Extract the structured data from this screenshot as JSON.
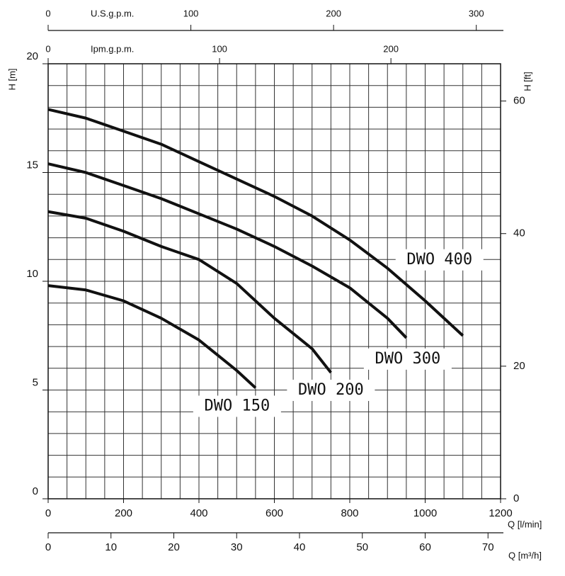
{
  "chart_data": {
    "type": "line",
    "x_label": "Q [l/min]",
    "y_label": "H [m]",
    "y2_label": "H [ft]",
    "xlim": [
      0,
      1200
    ],
    "xticks": [
      0,
      200,
      400,
      600,
      800,
      1000,
      1200
    ],
    "ylim": [
      0,
      20
    ],
    "yticks": [
      0,
      5,
      10,
      15,
      20
    ],
    "y2lim": [
      0,
      65.62
    ],
    "y2ticks": [
      0,
      20,
      40,
      60
    ],
    "grid": {
      "x_step": 50,
      "y_step": 1
    },
    "secondary_x_axes": [
      {
        "label": "Q [m³/h]",
        "lim": [
          0,
          72
        ],
        "ticks": [
          0,
          10,
          20,
          30,
          40,
          50,
          60,
          70
        ],
        "position": "bottom"
      },
      {
        "label": "U.S.g.p.m.",
        "lim": [
          0,
          317.01
        ],
        "ticks": [
          0,
          100,
          200,
          300
        ],
        "position": "top"
      },
      {
        "label": "Ipm.g.p.m.",
        "lim": [
          0,
          263.97
        ],
        "ticks": [
          0,
          100,
          200
        ],
        "position": "top"
      }
    ],
    "series": [
      {
        "name": "DWO 150",
        "color": "#111111",
        "x": [
          0,
          100,
          200,
          300,
          400,
          500,
          550
        ],
        "values": [
          9.8,
          9.6,
          9.1,
          8.3,
          7.3,
          5.9,
          5.1
        ]
      },
      {
        "name": "DWO 200",
        "color": "#111111",
        "x": [
          0,
          100,
          200,
          300,
          400,
          500,
          600,
          700,
          750
        ],
        "values": [
          13.2,
          12.9,
          12.3,
          11.6,
          11.0,
          9.9,
          8.3,
          6.9,
          5.8
        ]
      },
      {
        "name": "DWO 300",
        "color": "#111111",
        "x": [
          0,
          100,
          200,
          300,
          400,
          500,
          600,
          700,
          800,
          900,
          950
        ],
        "values": [
          15.4,
          15.0,
          14.4,
          13.8,
          13.1,
          12.4,
          11.6,
          10.7,
          9.7,
          8.3,
          7.4
        ]
      },
      {
        "name": "DWO 400",
        "color": "#111111",
        "x": [
          0,
          100,
          200,
          300,
          400,
          500,
          600,
          700,
          800,
          900,
          1000,
          1100
        ],
        "values": [
          17.9,
          17.5,
          16.9,
          16.3,
          15.5,
          14.7,
          13.9,
          13.0,
          11.9,
          10.6,
          9.1,
          7.5
        ]
      }
    ]
  }
}
